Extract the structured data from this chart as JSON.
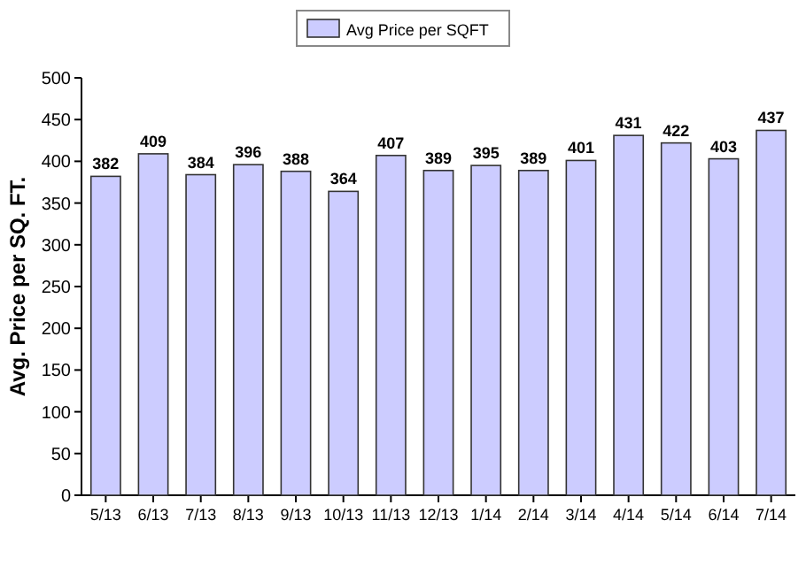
{
  "chart_data": {
    "type": "bar",
    "ylabel": "Avg. Price per SQ. FT.",
    "categories": [
      "5/13",
      "6/13",
      "7/13",
      "8/13",
      "9/13",
      "10/13",
      "11/13",
      "12/13",
      "1/14",
      "2/14",
      "3/14",
      "4/14",
      "5/14",
      "6/14",
      "7/14"
    ],
    "series": [
      {
        "name": "Avg Price per SQFT",
        "color": "#ccccff",
        "values": [
          382,
          409,
          384,
          396,
          388,
          364,
          407,
          389,
          395,
          389,
          401,
          431,
          422,
          403,
          437
        ]
      }
    ],
    "ylim": [
      0,
      500
    ],
    "yticks": [
      0,
      50,
      100,
      150,
      200,
      250,
      300,
      350,
      400,
      450,
      500
    ],
    "data_labels": true,
    "legend": "top",
    "grid": false
  }
}
